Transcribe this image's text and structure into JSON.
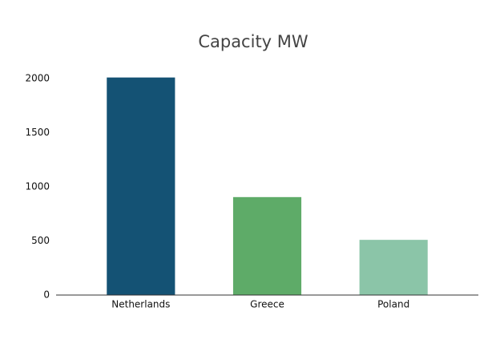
{
  "chart_data": {
    "type": "bar",
    "title": "Capacity MW",
    "categories": [
      "Netherlands",
      "Greece",
      "Poland"
    ],
    "values": [
      2010,
      905,
      510
    ],
    "colors": [
      "#145274",
      "#5eab68",
      "#8bc5a8"
    ],
    "ylim": [
      0,
      2000
    ],
    "yticks": [
      0,
      500,
      1000,
      1500,
      2000
    ],
    "grid": false
  }
}
